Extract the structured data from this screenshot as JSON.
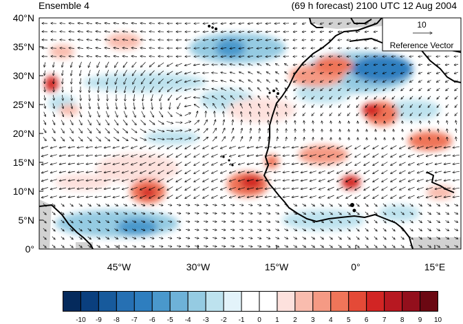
{
  "header": {
    "left_title": "Ensemble 4",
    "right_title": "(69 h forecast) 2100 UTC 12 Aug 2004"
  },
  "map": {
    "lat_labels": [
      "40°N",
      "35°N",
      "30°N",
      "25°N",
      "20°N",
      "15°N",
      "10°N",
      "5°N",
      "0°"
    ],
    "lon_labels": [
      "45°W",
      "30°W",
      "15°W",
      "0°",
      "15°E"
    ],
    "reference_vector": {
      "magnitude": "10",
      "label": "Reference Vector"
    },
    "land_color": "#d2d2d2"
  },
  "colorbar": {
    "labels": [
      "-10",
      "-9",
      "-8",
      "-7",
      "-6",
      "-5",
      "-4",
      "-3",
      "-2",
      "-1",
      "0",
      "1",
      "2",
      "3",
      "4",
      "5",
      "6",
      "7",
      "8",
      "9",
      "10"
    ],
    "colors": [
      "#052a5c",
      "#0a3f7e",
      "#175a9c",
      "#2670b3",
      "#2e7ebf",
      "#4a98cc",
      "#6eb2d8",
      "#95cbe2",
      "#bde2ee",
      "#e3f3fa",
      "#ffffff",
      "#ffffff",
      "#fde1dd",
      "#f9bcae",
      "#f59a84",
      "#ef7559",
      "#e44a37",
      "#d22524",
      "#b71821",
      "#930f1c",
      "#6b0812"
    ]
  }
}
